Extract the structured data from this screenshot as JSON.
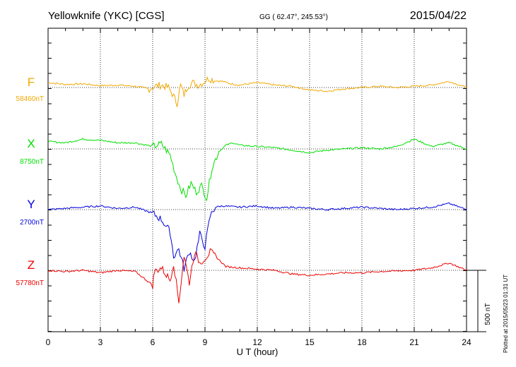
{
  "header": {
    "station": "Yellowknife (YKC)  [CGS]",
    "coords": "GG ( 62.47°, 245.53°)",
    "date": "2015/04/22"
  },
  "plotted_note": "Plotted at 2015/05/23 01:31  UT",
  "chart_data": {
    "type": "line",
    "xlabel": "U T (hour)",
    "xlim": [
      0,
      24
    ],
    "x_ticks": [
      0,
      3,
      6,
      9,
      12,
      15,
      18,
      21,
      24
    ],
    "scale_bar": {
      "label": "500 nT",
      "nT": 500
    },
    "grid": true,
    "series": [
      {
        "name": "F",
        "baseline_label": "58460nT",
        "baseline_nT": 58460,
        "color": "#f0a800",
        "x": [
          0,
          1,
          2,
          3,
          4,
          5,
          5.8,
          6.1,
          6.5,
          6.9,
          7.2,
          7.4,
          7.6,
          7.8,
          8.0,
          8.3,
          8.6,
          8.9,
          9.2,
          9.6,
          10.0,
          10.5,
          11.0,
          12.0,
          13.0,
          14.0,
          15.0,
          16.0,
          17.0,
          18.0,
          19.0,
          20.0,
          21.0,
          22.0,
          23.0,
          24.0
        ],
        "values": [
          40,
          25,
          30,
          15,
          20,
          10,
          -10,
          10,
          20,
          0,
          -70,
          -130,
          20,
          -60,
          10,
          40,
          20,
          40,
          75,
          55,
          50,
          30,
          20,
          40,
          20,
          10,
          -20,
          -30,
          -10,
          0,
          10,
          0,
          10,
          20,
          50,
          0
        ]
      },
      {
        "name": "X",
        "baseline_label": "8750nT",
        "baseline_nT": 8750,
        "color": "#00e000",
        "x": [
          0,
          1,
          2,
          3,
          4,
          5,
          6.0,
          6.5,
          7.0,
          7.3,
          7.6,
          7.9,
          8.2,
          8.5,
          8.8,
          9.1,
          9.4,
          9.8,
          10.2,
          10.6,
          11.0,
          12.0,
          13.0,
          14.0,
          15.0,
          16.0,
          17.0,
          18.0,
          19.0,
          20.0,
          21.0,
          22.0,
          23.0,
          24.0
        ],
        "values": [
          60,
          50,
          80,
          70,
          50,
          50,
          20,
          40,
          -50,
          -200,
          -320,
          -380,
          -280,
          -350,
          -300,
          -400,
          -150,
          -20,
          30,
          50,
          30,
          20,
          10,
          -10,
          -30,
          -10,
          0,
          10,
          0,
          20,
          80,
          20,
          50,
          0
        ]
      },
      {
        "name": "Y",
        "baseline_label": "2700nT",
        "baseline_nT": 2700,
        "color": "#0000dd",
        "x": [
          0,
          1,
          2,
          3,
          4,
          5,
          6.0,
          6.5,
          7.0,
          7.2,
          7.5,
          7.8,
          8.1,
          8.4,
          8.7,
          9.0,
          9.3,
          9.6,
          10.0,
          11.0,
          12.0,
          13.0,
          14.0,
          15.0,
          16.0,
          17.0,
          18.0,
          19.0,
          20.0,
          21.0,
          22.0,
          23.0,
          24.0
        ],
        "values": [
          0,
          10,
          20,
          30,
          10,
          20,
          -30,
          -80,
          -180,
          -380,
          -320,
          -480,
          -340,
          -420,
          -200,
          -300,
          -50,
          20,
          30,
          20,
          30,
          10,
          20,
          10,
          0,
          10,
          20,
          10,
          0,
          10,
          20,
          50,
          0
        ]
      },
      {
        "name": "Z",
        "baseline_label": "57780nT",
        "baseline_nT": 57780,
        "color": "#ee0000",
        "x": [
          0,
          1,
          2,
          3,
          4,
          5,
          6.0,
          6.1,
          6.5,
          7.0,
          7.2,
          7.5,
          7.8,
          8.1,
          8.4,
          8.7,
          9.0,
          9.3,
          9.7,
          10.2,
          11.0,
          12.0,
          13.0,
          14.0,
          15.0,
          16.0,
          17.0,
          18.0,
          19.0,
          20.0,
          21.0,
          22.0,
          23.0,
          24.0
        ],
        "values": [
          0,
          -10,
          0,
          -20,
          0,
          -10,
          -120,
          -10,
          20,
          -80,
          60,
          -260,
          120,
          -100,
          150,
          60,
          100,
          150,
          100,
          30,
          20,
          10,
          0,
          -30,
          -40,
          -30,
          -20,
          -20,
          -10,
          -5,
          0,
          20,
          60,
          0
        ]
      }
    ]
  }
}
